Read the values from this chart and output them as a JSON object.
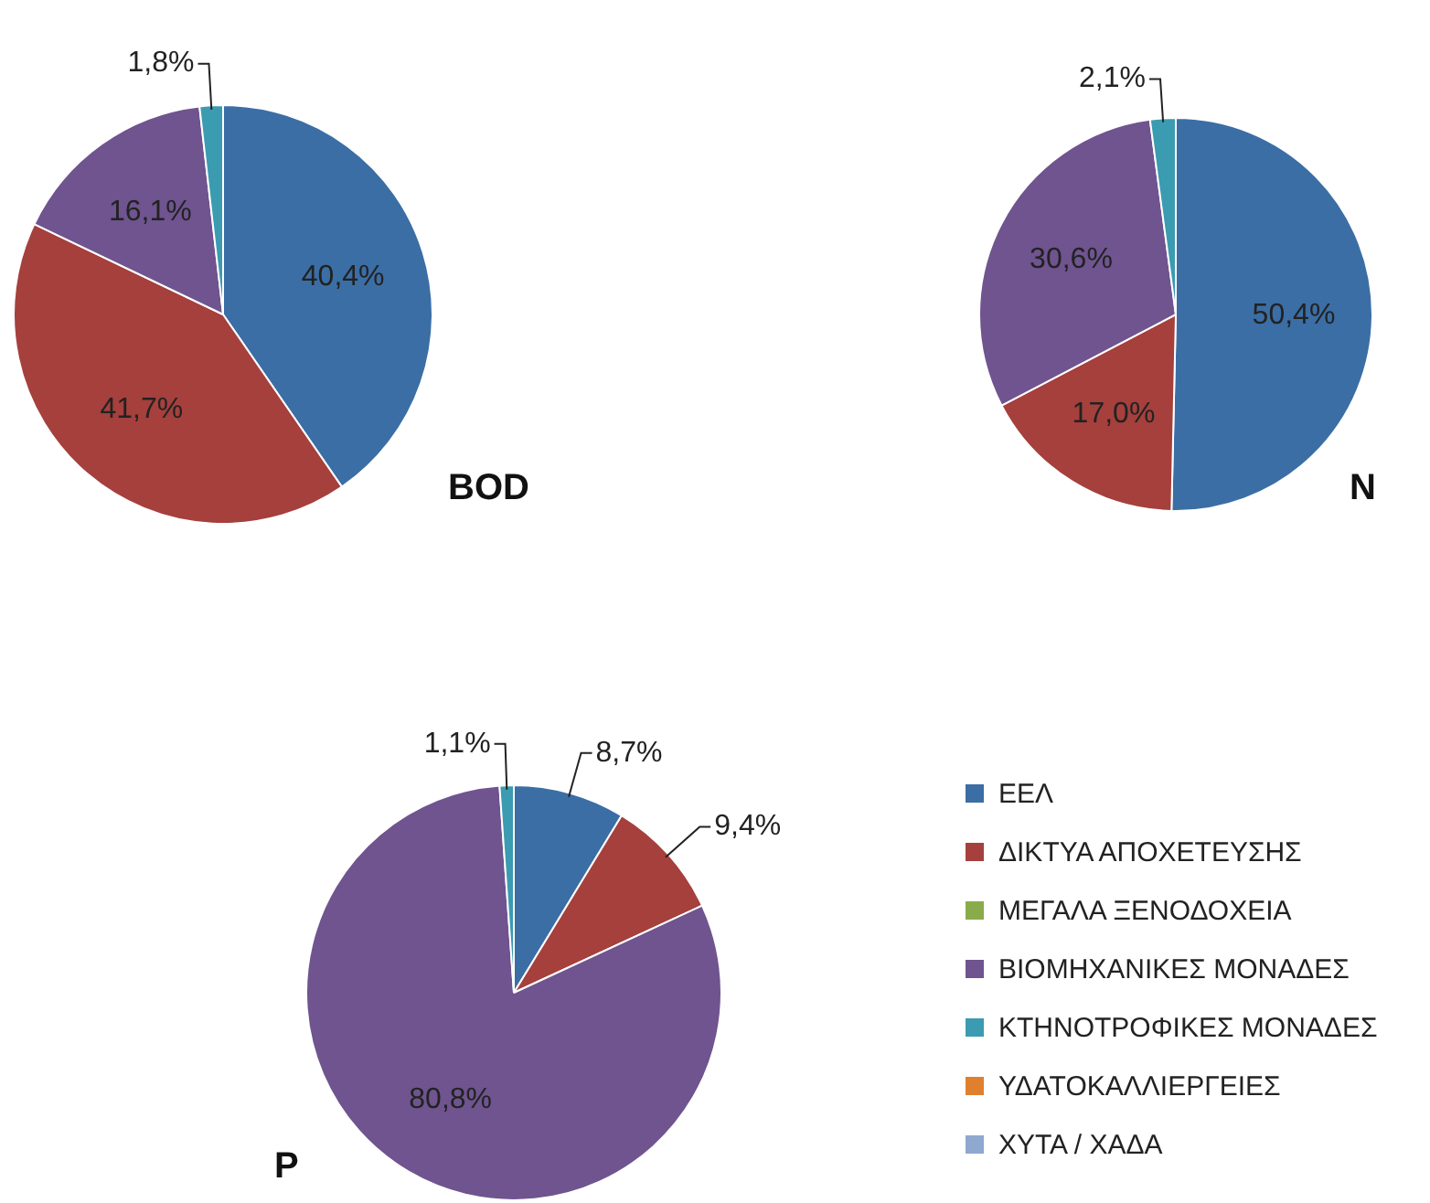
{
  "chart_data": [
    {
      "type": "pie",
      "title": "BOD",
      "categories": [
        null,
        null,
        null,
        null,
        null,
        null,
        null
      ],
      "values": [
        40.4,
        41.7,
        0,
        16.1,
        1.8,
        0,
        0
      ],
      "value_labels": [
        "40,4%",
        "41,7%",
        null,
        "16,1%",
        "1,8%",
        null,
        null
      ],
      "colors": [
        "#3b6ea5",
        "#a5403d",
        "#8aab4a",
        "#6f548f",
        "#3b9bb0",
        "#e0802e",
        "#8fa8d0"
      ]
    },
    {
      "type": "pie",
      "title": "N",
      "categories": [
        null,
        null,
        null,
        null,
        null,
        null,
        null
      ],
      "values": [
        50.4,
        17.0,
        0,
        30.6,
        2.1,
        0,
        0
      ],
      "value_labels": [
        "50,4%",
        "17,0%",
        null,
        "30,6%",
        "2,1%",
        null,
        null
      ],
      "colors": [
        "#3b6ea5",
        "#a5403d",
        "#8aab4a",
        "#6f548f",
        "#3b9bb0",
        "#e0802e",
        "#8fa8d0"
      ]
    },
    {
      "type": "pie",
      "title": "P",
      "categories": [
        "ΕΕΛ",
        "ΔΙΚΤΥΑ ΑΠΟΧΕΤΕΥΣΗΣ",
        "ΜΕΓΑΛΑ ΞΕΝΟΔΟΧΕΙΑ",
        "ΒΙΟΜΗΧΑΝΙΚΕΣ ΜΟΝΑΔΕΣ",
        "ΚΤΗΝΟΤΡΟΦΙΚΕΣ ΜΟΝΑΔΕΣ",
        "ΥΔΑΤΟΚΑΛΛΙΕΡΓΕΙΕΣ",
        "ΧΥΤΑ / ΧΑΔΑ"
      ],
      "values": [
        8.7,
        9.4,
        0,
        80.8,
        1.1,
        0,
        0
      ],
      "value_labels": [
        "8,7%",
        "9,4%",
        null,
        "80,8%",
        "1,1%",
        null,
        null
      ],
      "colors": [
        "#3b6ea5",
        "#a5403d",
        "#8aab4a",
        "#6f548f",
        "#3b9bb0",
        "#e0802e",
        "#8fa8d0"
      ],
      "legend": "right"
    }
  ]
}
